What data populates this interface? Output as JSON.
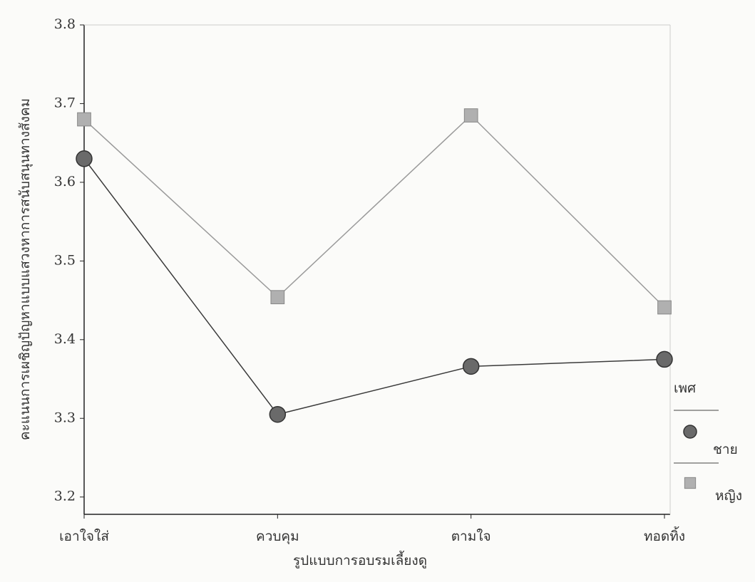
{
  "chart_data": {
    "type": "line",
    "x_label": "รูปแบบการอบรมเลี้ยงดู",
    "y_label": "คะแนนการเผชิญปัญหาแบบแสวงหาการสนับสนุนทางสังคม",
    "categories": [
      "เอาใจใส่",
      "ควบคุม",
      "ตามใจ",
      "ทอดทิ้ง"
    ],
    "series": [
      {
        "name": "ชาย",
        "color": "#6a6a6a",
        "line_color": "#3a3a3a",
        "marker": "circle",
        "values": [
          3.63,
          3.305,
          3.366,
          3.375
        ]
      },
      {
        "name": "หญิง",
        "color": "#b0b0b0",
        "line_color": "#9a9a9a",
        "marker": "square",
        "values": [
          3.68,
          3.454,
          3.685,
          3.441
        ]
      }
    ],
    "legend_title": "เพศ",
    "legend_position": "right",
    "ylim": [
      3.178,
      3.8
    ],
    "yticks": [
      3.2,
      3.3,
      3.4,
      3.5,
      3.6,
      3.7,
      3.8
    ],
    "grid": false
  }
}
